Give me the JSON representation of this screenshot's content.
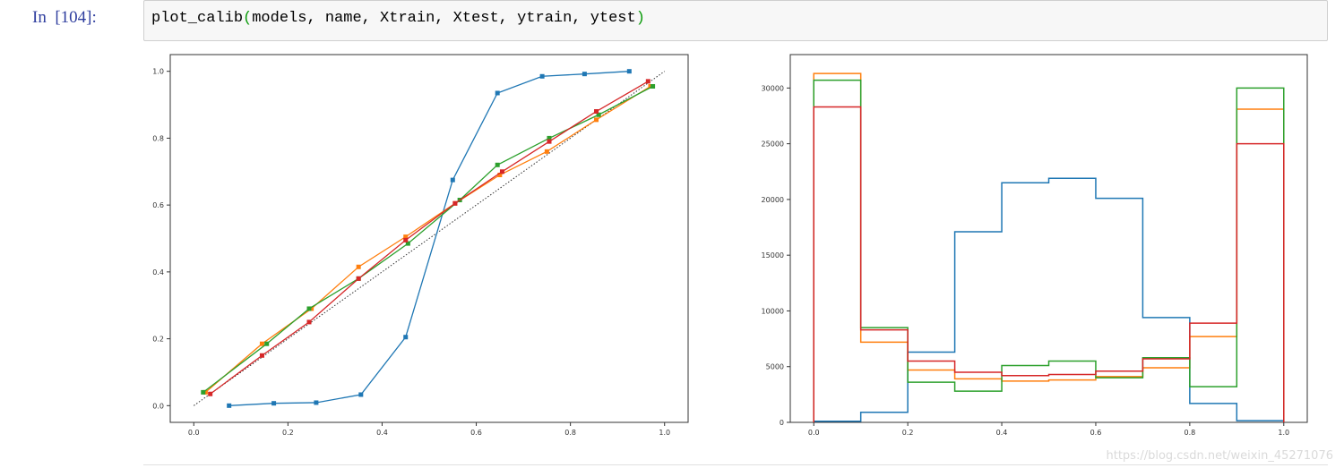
{
  "cell": {
    "prompt": "In  [104]:",
    "code_fn": "plot_calib",
    "code_open": "(",
    "code_args": "models, name, Xtrain, Xtest, ytrain, ytest",
    "code_close": ")"
  },
  "watermark": "https://blog.csdn.net/weixin_45271076",
  "colors": {
    "blue": "#1f77b4",
    "orange": "#ff7f0e",
    "green": "#2ca02c",
    "red": "#d62728",
    "reference": "#333333"
  },
  "chart_data": [
    {
      "type": "line",
      "xlim": [
        -0.05,
        1.05
      ],
      "ylim": [
        -0.05,
        1.05
      ],
      "xticks": [
        "0.0",
        "0.2",
        "0.4",
        "0.6",
        "0.8",
        "1.0"
      ],
      "yticks": [
        "0.0",
        "0.2",
        "0.4",
        "0.6",
        "0.8",
        "1.0"
      ],
      "grid": false,
      "reference_line": {
        "x": [
          0,
          1
        ],
        "y": [
          0,
          1
        ],
        "style": "dotted"
      },
      "series": [
        {
          "color": "#1f77b4",
          "x": [
            0.075,
            0.17,
            0.26,
            0.355,
            0.45,
            0.55,
            0.645,
            0.74,
            0.83,
            0.925
          ],
          "y": [
            0.0,
            0.007,
            0.009,
            0.033,
            0.205,
            0.675,
            0.935,
            0.985,
            0.992,
            1.0
          ]
        },
        {
          "color": "#ff7f0e",
          "x": [
            0.025,
            0.145,
            0.25,
            0.35,
            0.45,
            0.555,
            0.65,
            0.75,
            0.855,
            0.97
          ],
          "y": [
            0.04,
            0.185,
            0.29,
            0.415,
            0.505,
            0.605,
            0.69,
            0.76,
            0.855,
            0.955
          ]
        },
        {
          "color": "#2ca02c",
          "x": [
            0.02,
            0.155,
            0.245,
            0.35,
            0.455,
            0.565,
            0.645,
            0.755,
            0.86,
            0.975
          ],
          "y": [
            0.04,
            0.185,
            0.29,
            0.38,
            0.485,
            0.615,
            0.72,
            0.8,
            0.87,
            0.955
          ]
        },
        {
          "color": "#d62728",
          "x": [
            0.035,
            0.145,
            0.245,
            0.35,
            0.45,
            0.555,
            0.655,
            0.755,
            0.855,
            0.965
          ],
          "y": [
            0.035,
            0.15,
            0.25,
            0.38,
            0.495,
            0.605,
            0.7,
            0.79,
            0.88,
            0.97
          ]
        }
      ]
    },
    {
      "type": "histogram",
      "xlim": [
        -0.05,
        1.05
      ],
      "ylim": [
        0,
        33000
      ],
      "xticks": [
        "0.0",
        "0.2",
        "0.4",
        "0.6",
        "0.8",
        "1.0"
      ],
      "yticks": [
        "0",
        "5000",
        "10000",
        "15000",
        "20000",
        "25000",
        "30000"
      ],
      "grid": false,
      "bins": [
        0.0,
        0.1,
        0.2,
        0.3,
        0.4,
        0.5,
        0.6,
        0.7,
        0.8,
        0.9,
        1.0
      ],
      "series": [
        {
          "color": "#1f77b4",
          "values": [
            100,
            900,
            6300,
            17100,
            21500,
            21900,
            20100,
            9400,
            1700,
            150
          ]
        },
        {
          "color": "#ff7f0e",
          "values": [
            31300,
            7200,
            4700,
            3900,
            3700,
            3800,
            4100,
            4900,
            7700,
            28100
          ]
        },
        {
          "color": "#2ca02c",
          "values": [
            30700,
            8500,
            3600,
            2800,
            5100,
            5500,
            4000,
            5800,
            3200,
            30000
          ]
        },
        {
          "color": "#d62728",
          "values": [
            28300,
            8300,
            5500,
            4500,
            4200,
            4300,
            4600,
            5700,
            8900,
            25000
          ]
        }
      ]
    }
  ]
}
